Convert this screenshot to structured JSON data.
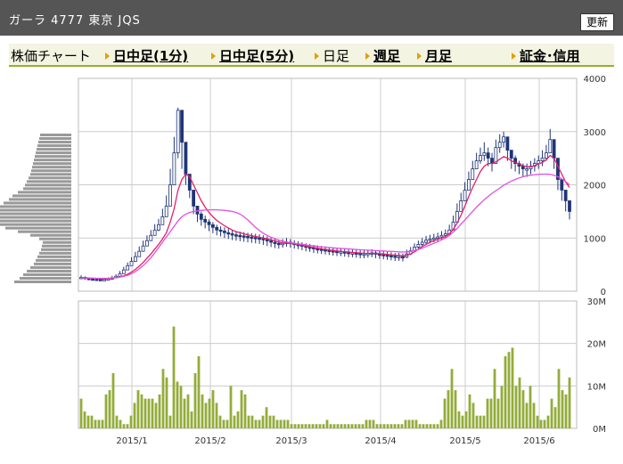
{
  "header": {
    "title": "ガーラ 4777 東京 JQS",
    "refresh_label": "更新"
  },
  "nav": {
    "label": "株価チャート",
    "items": [
      {
        "label": "日中足(1分)",
        "link": true
      },
      {
        "label": "日中足(5分)",
        "link": true
      },
      {
        "label": "日足",
        "link": false
      },
      {
        "label": "週足",
        "link": true
      },
      {
        "label": "月足",
        "link": true
      },
      {
        "label": "証金･信用",
        "link": true
      }
    ]
  },
  "colors": {
    "accent_green": "#9aae2c",
    "volume_bar": "#93ac3a",
    "ma_short": "#e0206a",
    "ma_long": "#e050e0",
    "candle_body": "#1f3577",
    "price_hist": "#999999"
  },
  "chart_data": [
    {
      "type": "candlestick",
      "title": "",
      "ylim": [
        0,
        4000
      ],
      "yticks": [
        "4000",
        "3000",
        "2000",
        "1000",
        "0"
      ],
      "x_tick_labels": [
        "2015/1",
        "2015/2",
        "2015/3",
        "2015/4",
        "2015/5",
        "2015/6"
      ],
      "series": [
        {
          "name": "",
          "values": [
            260,
            240,
            230,
            225,
            220,
            215,
            220,
            230,
            250,
            280,
            330,
            400,
            480,
            560,
            650,
            750,
            850,
            950,
            1050,
            1150,
            1250,
            1400,
            1600,
            2000,
            2600,
            3400,
            2800,
            2200,
            1900,
            1600,
            1450,
            1350,
            1300,
            1250,
            1200,
            1150,
            1130,
            1100,
            1080,
            1060,
            1050,
            1040,
            1030,
            1020,
            1010,
            1000,
            990,
            970,
            950,
            920,
            900,
            890,
            900,
            920,
            900,
            880,
            870,
            850,
            830,
            820,
            800,
            790,
            780,
            770,
            760,
            750,
            740,
            740,
            730,
            720,
            720,
            710,
            700,
            700,
            710,
            720,
            700,
            690,
            680,
            670,
            660,
            650,
            650,
            640,
            700,
            760,
            830,
            880,
            920,
            960,
            980,
            1000,
            1020,
            1050,
            1080,
            1150,
            1300,
            1500,
            1700,
            1900,
            2100,
            2300,
            2450,
            2550,
            2600,
            2500,
            2400,
            2700,
            2800,
            2900,
            2650,
            2500,
            2400,
            2350,
            2300,
            2300,
            2350,
            2400,
            2450,
            2500,
            2600,
            2850,
            2500,
            2100,
            1900,
            1700,
            1500
          ],
          "highs": [
            300,
            280,
            260,
            250,
            240,
            240,
            250,
            260,
            290,
            320,
            380,
            460,
            540,
            640,
            740,
            840,
            950,
            1050,
            1150,
            1260,
            1360,
            1550,
            1800,
            2300,
            2900,
            3450,
            3000,
            2400,
            2100,
            1800,
            1600,
            1500,
            1420,
            1350,
            1300,
            1250,
            1220,
            1200,
            1180,
            1150,
            1130,
            1120,
            1110,
            1100,
            1090,
            1080,
            1070,
            1050,
            1030,
            1000,
            980,
            960,
            980,
            1000,
            980,
            960,
            940,
            920,
            900,
            890,
            870,
            860,
            850,
            840,
            830,
            820,
            810,
            810,
            800,
            790,
            790,
            780,
            770,
            770,
            780,
            790,
            770,
            760,
            750,
            740,
            730,
            720,
            720,
            710,
            780,
            830,
            900,
            950,
            1000,
            1040,
            1060,
            1080,
            1100,
            1130,
            1160,
            1250,
            1420,
            1650,
            1850,
            2050,
            2250,
            2450,
            2600,
            2700,
            2800,
            2700,
            2600,
            2850,
            2950,
            3000,
            2800,
            2650,
            2550,
            2450,
            2400,
            2400,
            2450,
            2500,
            2550,
            2650,
            2750,
            3050,
            2650,
            2300,
            2050,
            1850,
            1650
          ],
          "lows": [
            230,
            220,
            210,
            205,
            200,
            195,
            200,
            210,
            225,
            250,
            300,
            360,
            430,
            500,
            580,
            680,
            760,
            860,
            950,
            1050,
            1130,
            1280,
            1450,
            1800,
            2400,
            2500,
            2300,
            2000,
            1750,
            1450,
            1300,
            1230,
            1180,
            1130,
            1090,
            1050,
            1030,
            1000,
            980,
            960,
            950,
            940,
            930,
            920,
            910,
            900,
            890,
            870,
            850,
            830,
            810,
            800,
            820,
            840,
            820,
            800,
            790,
            770,
            750,
            740,
            720,
            710,
            700,
            690,
            680,
            670,
            660,
            660,
            650,
            640,
            640,
            630,
            620,
            620,
            630,
            640,
            620,
            610,
            600,
            590,
            580,
            570,
            570,
            560,
            620,
            680,
            750,
            800,
            840,
            880,
            900,
            920,
            940,
            970,
            1000,
            1060,
            1180,
            1350,
            1550,
            1750,
            1950,
            2150,
            2300,
            2400,
            2450,
            2350,
            2250,
            2500,
            2600,
            2700,
            2450,
            2300,
            2250,
            2200,
            2150,
            2150,
            2200,
            2250,
            2300,
            2350,
            2450,
            2600,
            2300,
            1900,
            1700,
            1500,
            1350
          ]
        },
        {
          "name": "",
          "values": [
            260,
            255,
            250,
            245,
            240,
            235,
            235,
            238,
            245,
            255,
            270,
            290,
            320,
            360,
            410,
            470,
            540,
            620,
            700,
            790,
            880,
            980,
            1100,
            1300,
            1550,
            1900,
            2100,
            2200,
            2150,
            2000,
            1850,
            1700,
            1580,
            1480,
            1400,
            1330,
            1280,
            1230,
            1190,
            1150,
            1120,
            1100,
            1080,
            1060,
            1045,
            1030,
            1015,
            1000,
            985,
            965,
            945,
            925,
            910,
            905,
            900,
            890,
            880,
            865,
            850,
            835,
            820,
            808,
            797,
            787,
            777,
            767,
            757,
            750,
            743,
            736,
            730,
            724,
            718,
            713,
            712,
            713,
            710,
            705,
            700,
            693,
            685,
            678,
            672,
            665,
            675,
            700,
            740,
            790,
            840,
            880,
            920,
            950,
            975,
            1000,
            1030,
            1080,
            1160,
            1280,
            1430,
            1600,
            1780,
            1950,
            2100,
            2250,
            2350,
            2400,
            2400,
            2430,
            2480,
            2530,
            2500,
            2450,
            2420,
            2390,
            2360,
            2340,
            2340,
            2360,
            2390,
            2420,
            2470,
            2550,
            2500,
            2350,
            2200,
            2050,
            1950
          ]
        },
        {
          "name": "",
          "values": [
            250,
            248,
            246,
            244,
            243,
            242,
            242,
            244,
            248,
            255,
            265,
            280,
            300,
            330,
            370,
            420,
            480,
            550,
            630,
            720,
            820,
            920,
            1020,
            1120,
            1220,
            1320,
            1400,
            1450,
            1480,
            1500,
            1510,
            1520,
            1525,
            1530,
            1530,
            1530,
            1525,
            1520,
            1510,
            1500,
            1480,
            1450,
            1400,
            1340,
            1270,
            1200,
            1140,
            1090,
            1050,
            1015,
            985,
            960,
            940,
            925,
            912,
            900,
            890,
            880,
            870,
            860,
            850,
            842,
            835,
            828,
            821,
            815,
            810,
            805,
            800,
            795,
            790,
            785,
            780,
            776,
            772,
            768,
            764,
            760,
            756,
            752,
            748,
            744,
            740,
            736,
            740,
            750,
            765,
            785,
            810,
            840,
            870,
            900,
            930,
            965,
            1000,
            1050,
            1110,
            1180,
            1260,
            1340,
            1420,
            1500,
            1580,
            1650,
            1720,
            1780,
            1840,
            1890,
            1940,
            1990,
            2030,
            2070,
            2100,
            2130,
            2150,
            2170,
            2180,
            2190,
            2195,
            2200,
            2200,
            2195,
            2180,
            2150,
            2110,
            2060,
            2000
          ]
        },
        {
          "name": "",
          "values": [
            320,
            290,
            270,
            250,
            230,
            210,
            200,
            190,
            180,
            170,
            165,
            160,
            180,
            230,
            300,
            370,
            430,
            500,
            520,
            480,
            440,
            410,
            380,
            350,
            330,
            300,
            270,
            260,
            250,
            240,
            230,
            225,
            220,
            215,
            210,
            205,
            200,
            195,
            190,
            185,
            180,
            175
          ]
        }
      ]
    },
    {
      "type": "bar",
      "title": "",
      "ylim": [
        0,
        30
      ],
      "yticks": [
        "30M",
        "20M",
        "10M",
        "0M"
      ],
      "x_tick_labels": [
        "2015/1",
        "2015/2",
        "2015/3",
        "2015/4",
        "2015/5",
        "2015/6"
      ],
      "series": [
        {
          "name": "",
          "values": [
            7,
            4,
            3,
            3,
            2,
            2,
            2,
            8,
            9,
            13,
            3,
            2,
            1,
            1,
            3,
            6,
            9,
            8,
            7,
            7,
            7,
            6,
            8,
            14,
            12,
            3,
            24,
            11,
            10,
            7,
            8,
            4,
            13,
            17,
            8,
            6,
            7,
            9,
            6,
            3,
            2,
            2,
            10,
            3,
            4,
            9,
            8,
            3,
            3,
            2,
            2,
            3,
            5,
            3,
            3,
            2,
            2,
            2,
            2,
            1,
            1,
            1,
            1,
            1,
            1,
            1,
            1,
            1,
            1,
            2,
            1,
            1,
            1,
            1,
            1,
            1,
            1,
            1,
            1,
            1,
            2,
            2,
            2,
            1,
            1,
            1,
            1,
            1,
            1,
            1,
            1,
            2,
            2,
            2,
            2,
            1,
            1,
            1,
            1,
            1,
            1,
            2,
            7,
            9,
            14,
            9,
            4,
            3,
            4,
            8,
            6,
            3,
            3,
            3,
            7,
            7,
            14,
            7,
            10,
            17,
            18,
            19,
            10,
            12,
            9,
            6,
            10,
            6,
            3,
            2,
            2,
            3,
            7,
            5,
            14,
            9,
            8,
            12
          ]
        }
      ]
    }
  ]
}
